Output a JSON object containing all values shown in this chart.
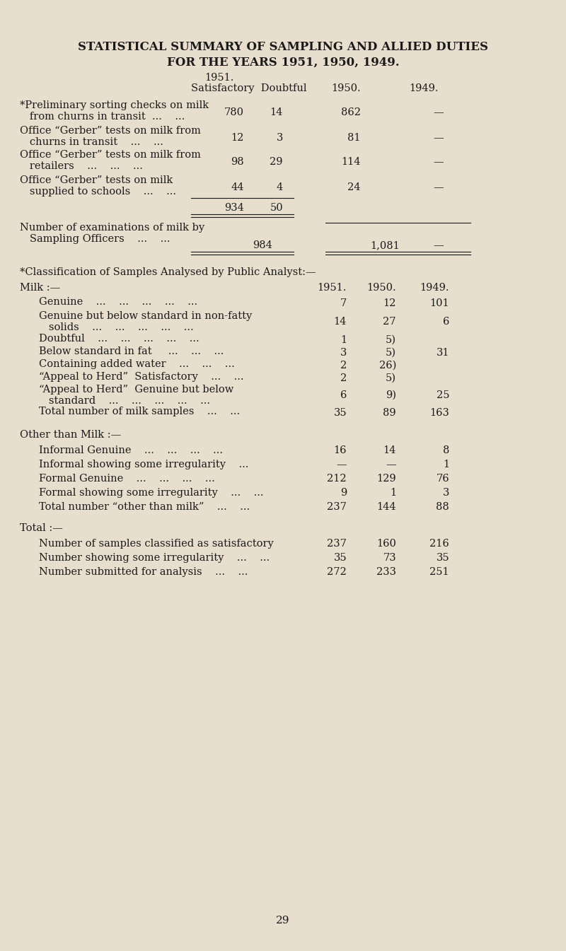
{
  "bg_color": "#e8dece",
  "text_color": "#1a1a1a",
  "title_line1": "STATISTICAL SUMMARY OF SAMPLING AND ALLIED DUTIES",
  "title_line2": "FOR THE YEARS 1951, 1950, 1949.",
  "page_number": "29",
  "figsize": [
    8.0,
    13.45
  ],
  "dpi": 100
}
